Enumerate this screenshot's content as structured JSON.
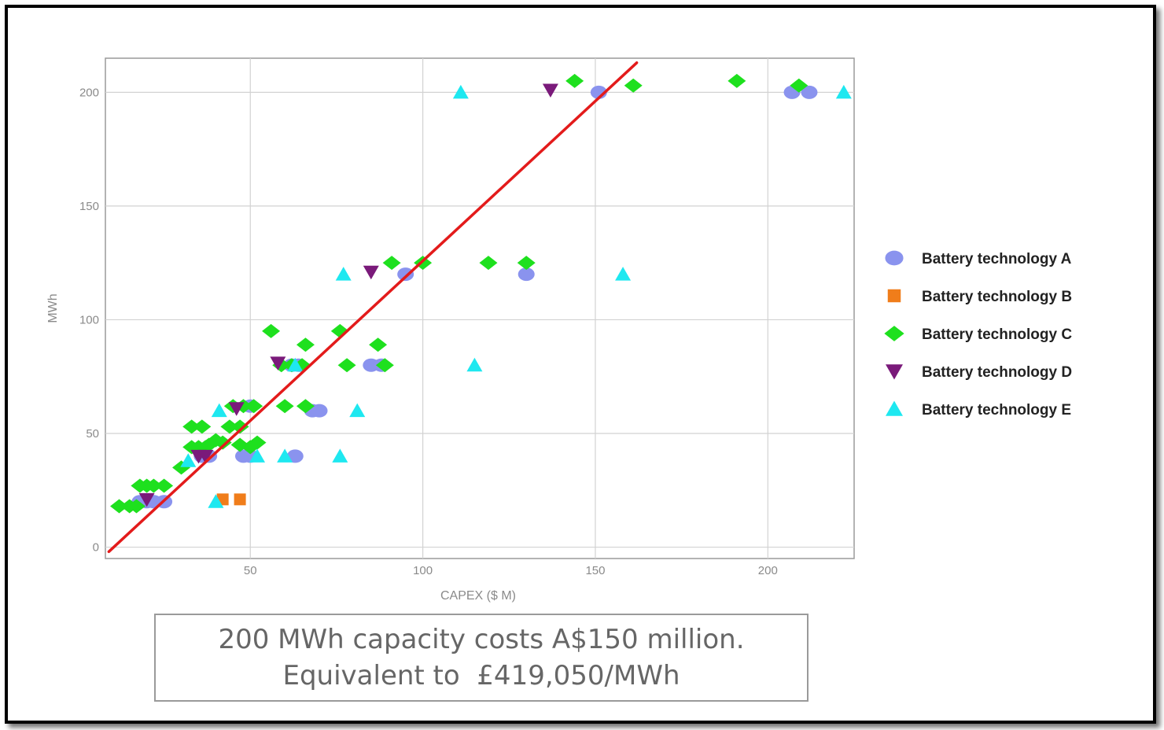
{
  "caption": {
    "line1": "200 MWh capacity costs A$150 million.",
    "line2": "Equivalent to  £419,050/MWh"
  },
  "chart_data": {
    "type": "scatter",
    "title": "",
    "xlabel": "CAPEX ($ M)",
    "ylabel": "MWh",
    "xlim": [
      8,
      225
    ],
    "ylim": [
      -5,
      215
    ],
    "xticks": [
      50,
      100,
      150,
      200
    ],
    "yticks": [
      0,
      50,
      100,
      150,
      200
    ],
    "grid": true,
    "legend_position": "right",
    "trendline": {
      "color": "#e31b1b",
      "points": [
        [
          9,
          -2
        ],
        [
          162,
          213
        ]
      ]
    },
    "series": [
      {
        "name": "Battery technology A",
        "marker": "circle",
        "color": "#8a93ee",
        "points": [
          [
            18,
            20
          ],
          [
            20,
            20
          ],
          [
            22,
            20
          ],
          [
            25,
            20
          ],
          [
            36,
            40
          ],
          [
            38,
            40
          ],
          [
            48,
            40
          ],
          [
            50,
            40
          ],
          [
            63,
            40
          ],
          [
            50,
            62
          ],
          [
            62,
            80
          ],
          [
            64,
            80
          ],
          [
            68,
            60
          ],
          [
            70,
            60
          ],
          [
            85,
            80
          ],
          [
            88,
            80
          ],
          [
            95,
            120
          ],
          [
            130,
            120
          ],
          [
            151,
            200
          ],
          [
            207,
            200
          ],
          [
            212,
            200
          ]
        ]
      },
      {
        "name": "Battery technology B",
        "marker": "square",
        "color": "#f07d1a",
        "points": [
          [
            42,
            21
          ],
          [
            47,
            21
          ]
        ]
      },
      {
        "name": "Battery technology C",
        "marker": "diamond",
        "color": "#1ee01e",
        "points": [
          [
            12,
            18
          ],
          [
            15,
            18
          ],
          [
            17,
            18
          ],
          [
            18,
            27
          ],
          [
            20,
            27
          ],
          [
            22,
            27
          ],
          [
            25,
            27
          ],
          [
            30,
            35
          ],
          [
            33,
            44
          ],
          [
            35,
            44
          ],
          [
            37,
            44
          ],
          [
            33,
            53
          ],
          [
            36,
            53
          ],
          [
            38,
            45
          ],
          [
            40,
            47
          ],
          [
            42,
            46
          ],
          [
            44,
            53
          ],
          [
            47,
            53
          ],
          [
            45,
            62
          ],
          [
            48,
            62
          ],
          [
            51,
            62
          ],
          [
            47,
            45
          ],
          [
            50,
            44
          ],
          [
            52,
            46
          ],
          [
            56,
            95
          ],
          [
            59,
            80
          ],
          [
            62,
            80
          ],
          [
            65,
            80
          ],
          [
            60,
            62
          ],
          [
            66,
            62
          ],
          [
            66,
            89
          ],
          [
            76,
            95
          ],
          [
            78,
            80
          ],
          [
            87,
            89
          ],
          [
            89,
            80
          ],
          [
            91,
            125
          ],
          [
            100,
            125
          ],
          [
            119,
            125
          ],
          [
            130,
            125
          ],
          [
            144,
            205
          ],
          [
            161,
            203
          ],
          [
            191,
            205
          ],
          [
            209,
            203
          ]
        ]
      },
      {
        "name": "Battery technology D",
        "marker": "triangle-down",
        "color": "#7a1a7a",
        "points": [
          [
            20,
            21
          ],
          [
            35,
            40
          ],
          [
            37,
            40
          ],
          [
            46,
            61
          ],
          [
            58,
            81
          ],
          [
            85,
            121
          ],
          [
            137,
            201
          ]
        ]
      },
      {
        "name": "Battery technology E",
        "marker": "triangle-up",
        "color": "#1ee8f0",
        "points": [
          [
            32,
            38
          ],
          [
            41,
            60
          ],
          [
            40,
            20
          ],
          [
            52,
            40
          ],
          [
            60,
            40
          ],
          [
            63,
            80
          ],
          [
            76,
            40
          ],
          [
            77,
            120
          ],
          [
            81,
            60
          ],
          [
            111,
            200
          ],
          [
            115,
            80
          ],
          [
            158,
            120
          ],
          [
            222,
            200
          ]
        ]
      }
    ]
  }
}
